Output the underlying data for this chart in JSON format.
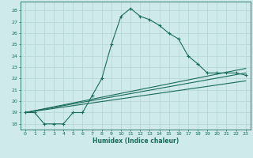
{
  "xlabel": "Humidex (Indice chaleur)",
  "ylabel": "",
  "background_color": "#ceeaea",
  "grid_color": "#b8d8d8",
  "line_color": "#1a6b5a",
  "xlim": [
    -0.5,
    23.5
  ],
  "ylim": [
    17.5,
    28.8
  ],
  "yticks": [
    18,
    19,
    20,
    21,
    22,
    23,
    24,
    25,
    26,
    27,
    28
  ],
  "xticks": [
    0,
    1,
    2,
    3,
    4,
    5,
    6,
    7,
    8,
    9,
    10,
    11,
    12,
    13,
    14,
    15,
    16,
    17,
    18,
    19,
    20,
    21,
    22,
    23
  ],
  "series": [
    {
      "x": [
        0,
        1,
        2,
        3,
        4,
        5,
        6,
        7,
        8,
        9,
        10,
        11,
        12,
        13,
        14,
        15,
        16,
        17,
        18,
        19,
        20,
        21,
        22,
        23
      ],
      "y": [
        19.0,
        19.0,
        18.0,
        18.0,
        18.0,
        19.0,
        19.0,
        20.5,
        22.0,
        25.0,
        27.5,
        28.2,
        27.5,
        27.2,
        26.7,
        26.0,
        25.5,
        24.0,
        23.3,
        22.5,
        22.5,
        22.5,
        22.5,
        22.3
      ],
      "with_markers": true
    },
    {
      "x": [
        0,
        23
      ],
      "y": [
        19.0,
        22.5
      ],
      "with_markers": false
    },
    {
      "x": [
        0,
        23
      ],
      "y": [
        19.0,
        21.8
      ],
      "with_markers": false
    },
    {
      "x": [
        0,
        23
      ],
      "y": [
        19.0,
        22.9
      ],
      "with_markers": false
    }
  ]
}
